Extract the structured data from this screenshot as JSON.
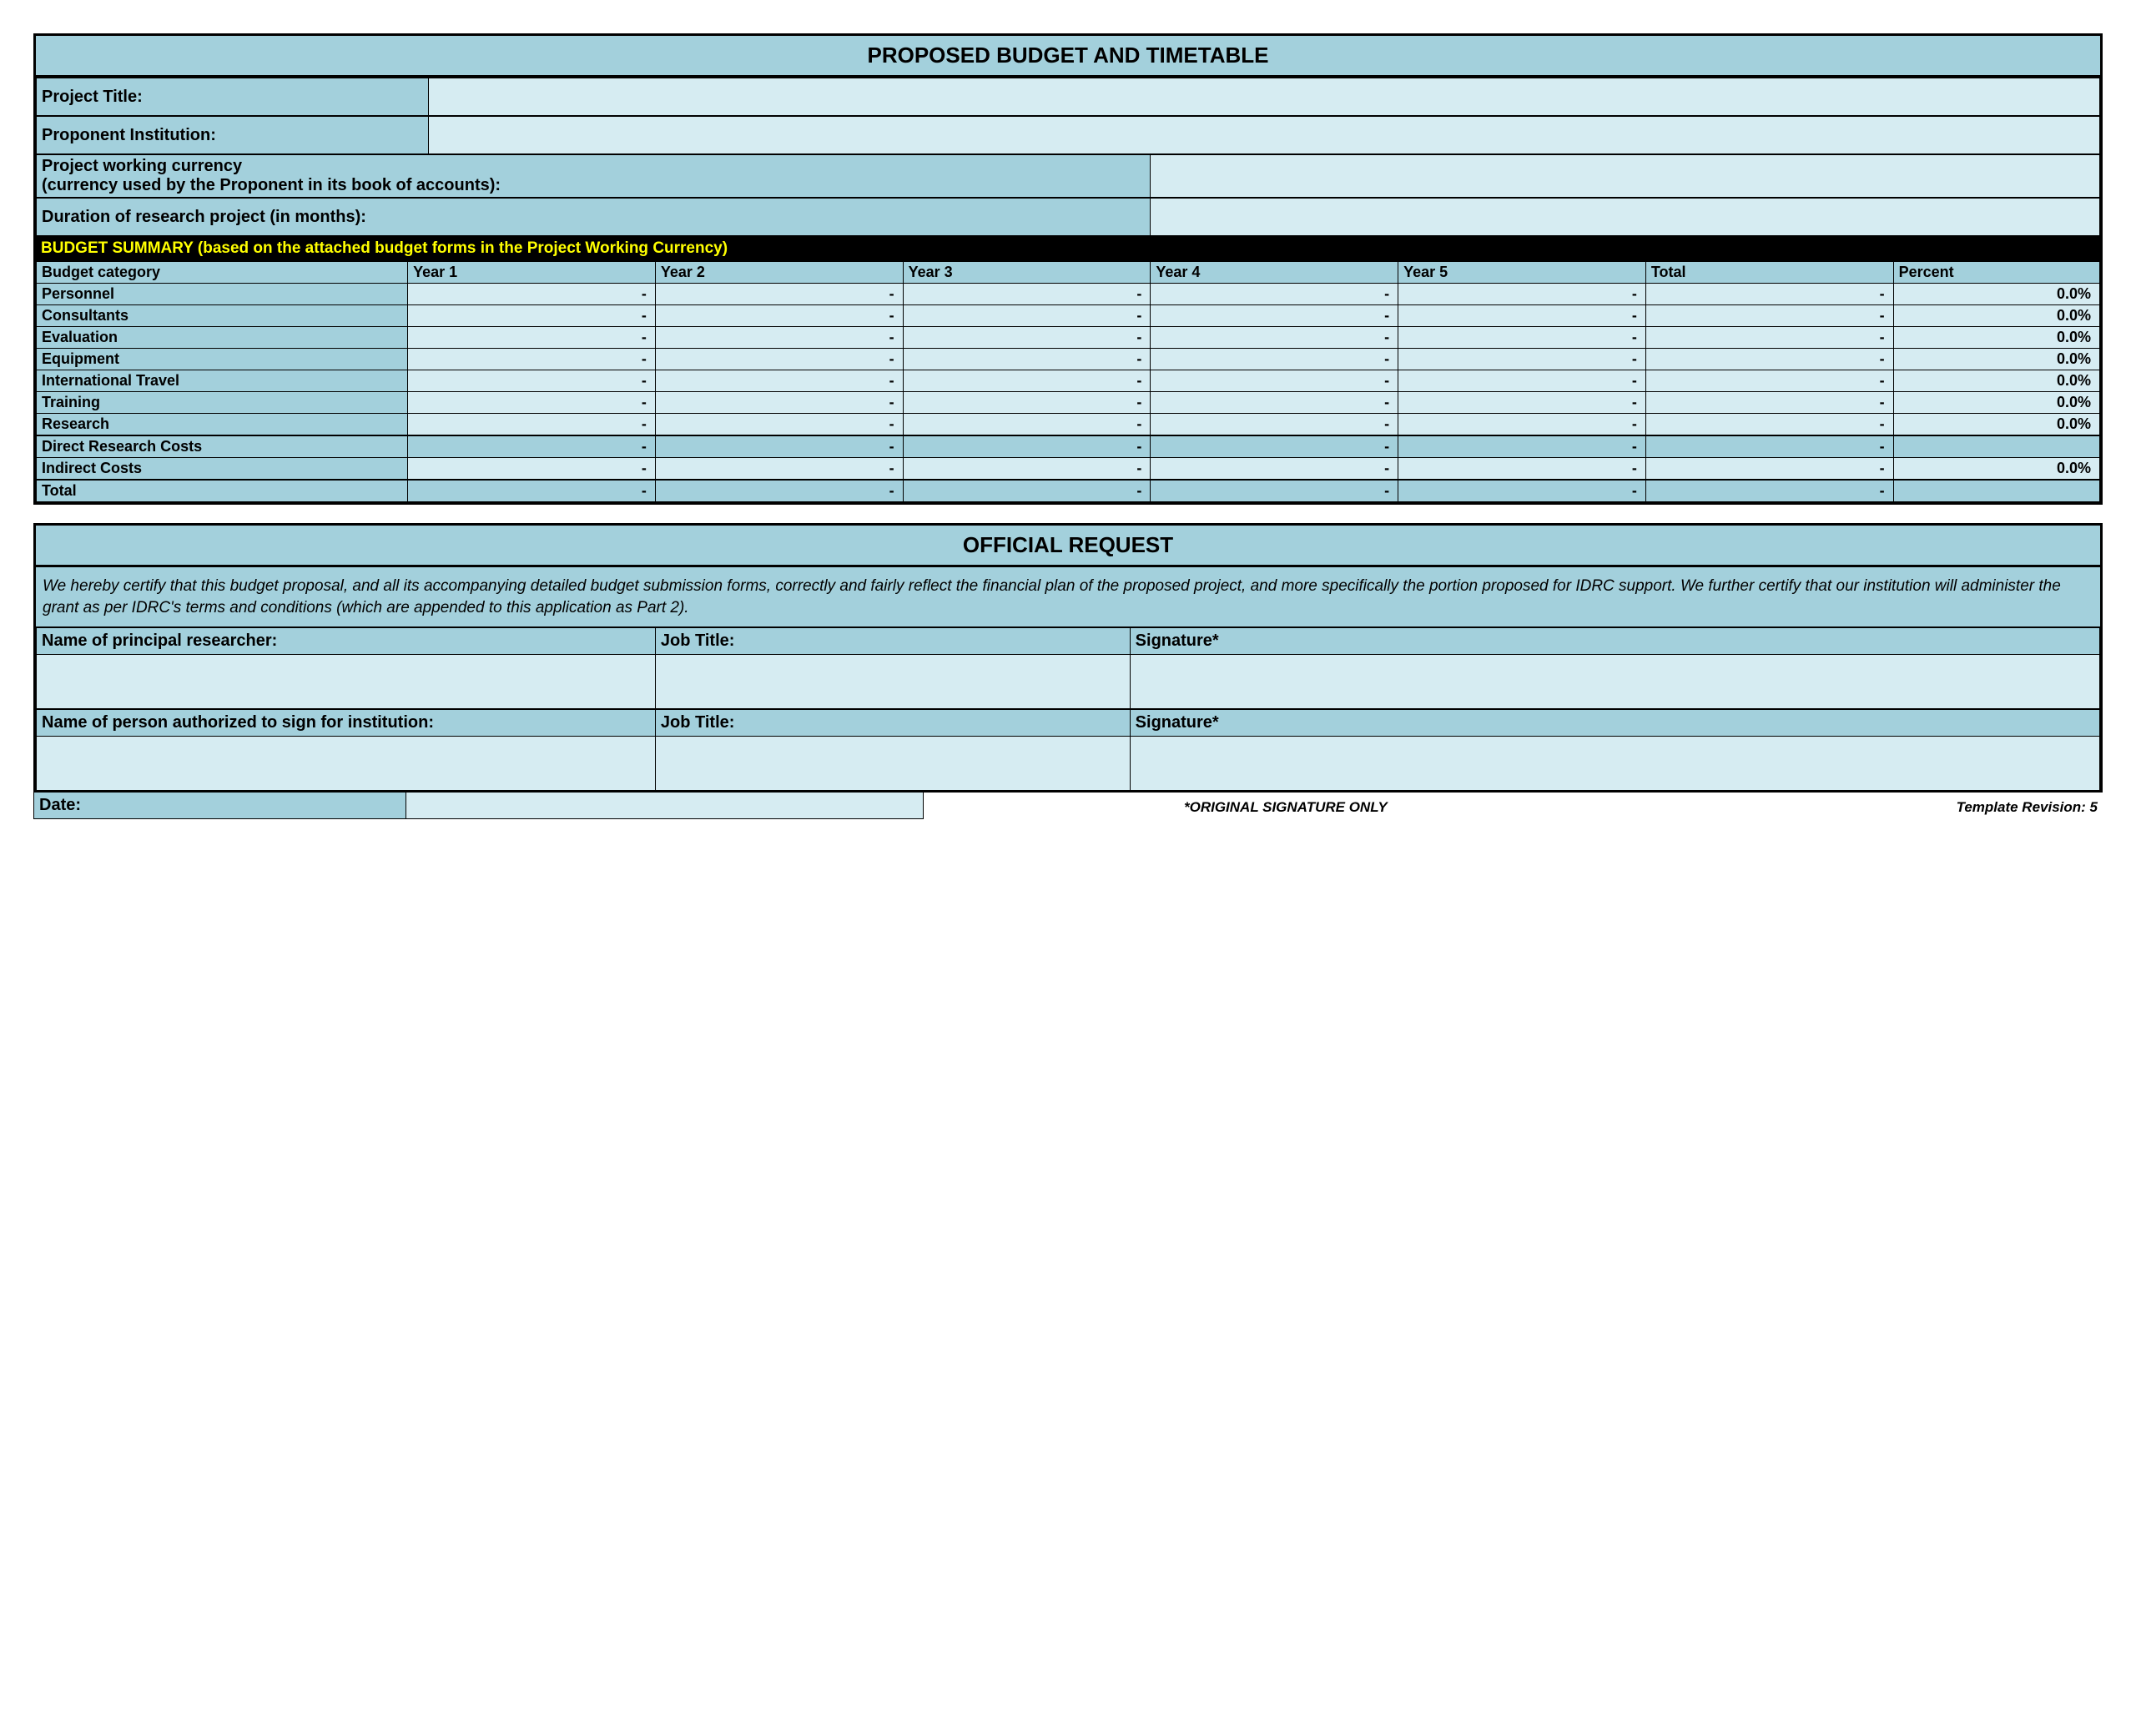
{
  "header": {
    "title": "PROPOSED BUDGET AND TIMETABLE"
  },
  "fields": {
    "project_title_label": "Project Title:",
    "project_title_value": "",
    "proponent_label": "Proponent Institution:",
    "proponent_value": "",
    "currency_label_line1": "Project working currency",
    "currency_label_line2": "(currency used by the Proponent in its book of accounts):",
    "currency_value": "",
    "duration_label": "Duration of research project (in months):",
    "duration_value": ""
  },
  "budget": {
    "summary_bar": "BUDGET SUMMARY (based on the attached budget forms in the Project Working Currency)",
    "columns": [
      "Budget category",
      "Year 1",
      "Year 2",
      "Year 3",
      "Year 4",
      "Year 5",
      "Total",
      "Percent"
    ],
    "rows": [
      {
        "cat": "Personnel",
        "y1": "-",
        "y2": "-",
        "y3": "-",
        "y4": "-",
        "y5": "-",
        "total": "-",
        "pct": "0.0%",
        "style": "normal"
      },
      {
        "cat": "Consultants",
        "y1": "-",
        "y2": "-",
        "y3": "-",
        "y4": "-",
        "y5": "-",
        "total": "-",
        "pct": "0.0%",
        "style": "normal"
      },
      {
        "cat": "Evaluation",
        "y1": "-",
        "y2": "-",
        "y3": "-",
        "y4": "-",
        "y5": "-",
        "total": "-",
        "pct": "0.0%",
        "style": "normal"
      },
      {
        "cat": "Equipment",
        "y1": "-",
        "y2": "-",
        "y3": "-",
        "y4": "-",
        "y5": "-",
        "total": "-",
        "pct": "0.0%",
        "style": "normal"
      },
      {
        "cat": "International Travel",
        "y1": "-",
        "y2": "-",
        "y3": "-",
        "y4": "-",
        "y5": "-",
        "total": "-",
        "pct": "0.0%",
        "style": "normal"
      },
      {
        "cat": "Training",
        "y1": "-",
        "y2": "-",
        "y3": "-",
        "y4": "-",
        "y5": "-",
        "total": "-",
        "pct": "0.0%",
        "style": "normal"
      },
      {
        "cat": "Research",
        "y1": "-",
        "y2": "-",
        "y3": "-",
        "y4": "-",
        "y5": "-",
        "total": "-",
        "pct": "0.0%",
        "style": "normal"
      },
      {
        "cat": "Direct Research Costs",
        "y1": "-",
        "y2": "-",
        "y3": "-",
        "y4": "-",
        "y5": "-",
        "total": "-",
        "pct": "",
        "style": "sub"
      },
      {
        "cat": "Indirect Costs",
        "y1": "-",
        "y2": "-",
        "y3": "-",
        "y4": "-",
        "y5": "-",
        "total": "-",
        "pct": "0.0%",
        "style": "normal"
      },
      {
        "cat": "Total",
        "y1": "-",
        "y2": "-",
        "y3": "-",
        "y4": "-",
        "y5": "-",
        "total": "-",
        "pct": "",
        "style": "sub"
      }
    ]
  },
  "official": {
    "title": "OFFICIAL REQUEST",
    "certification": "We hereby certify that this budget proposal, and all its accompanying detailed budget submission forms, correctly and fairly reflect the financial plan of the proposed project, and more specifically the portion proposed for IDRC support. We further certify that our institution will administer the grant as per IDRC's terms and conditions (which are appended to this application as Part 2).",
    "row1": {
      "name_label": "Name of principal researcher:",
      "job_label": "Job Title:",
      "sig_label": "Signature*"
    },
    "row2": {
      "name_label": "Name of person authorized to sign for institution:",
      "job_label": "Job Title:",
      "sig_label": "Signature*"
    },
    "date_label": "Date:",
    "original_sig_note": "*ORIGINAL SIGNATURE ONLY",
    "revision_note": "Template Revision: 5"
  },
  "colors": {
    "header_bg": "#a3d0dc",
    "light_bg": "#d6ecf2",
    "black_bar_bg": "#000000",
    "black_bar_text": "#ffff00",
    "border": "#000000"
  }
}
